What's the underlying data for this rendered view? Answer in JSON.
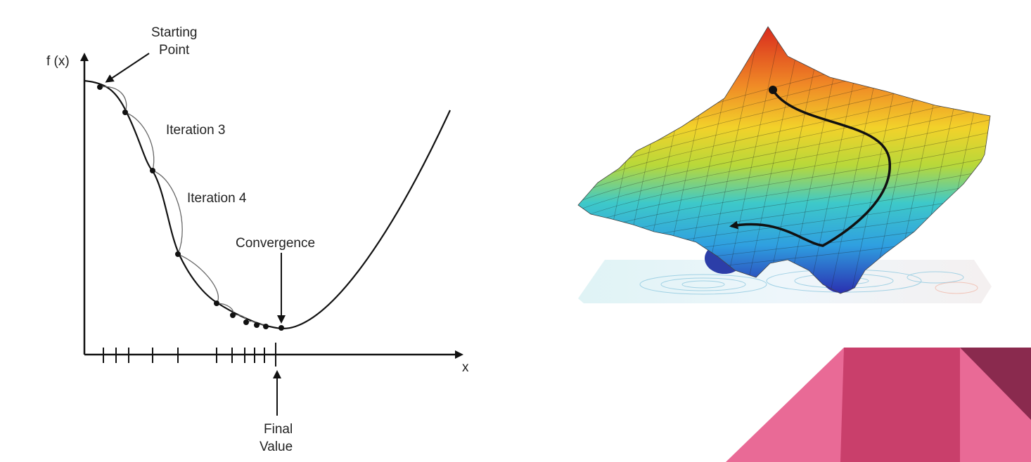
{
  "left_diagram": {
    "y_axis_label": "f (x)",
    "x_axis_label": "x",
    "starting_point": [
      "Starting",
      "Point"
    ],
    "iteration_3": "Iteration 3",
    "iteration_4": "Iteration 4",
    "convergence": "Convergence",
    "final_value": [
      "Final",
      "Value"
    ]
  },
  "right_diagram": {
    "surface_colormap": [
      "#2a2fb0",
      "#2f9fe0",
      "#3ec9c9",
      "#b8d83a",
      "#f2d22a",
      "#f08a26",
      "#d92b1e"
    ],
    "path_color": "#111111"
  },
  "decoration": {
    "colors": [
      "#e96a96",
      "#c93f6b",
      "#8a2a4e"
    ]
  }
}
